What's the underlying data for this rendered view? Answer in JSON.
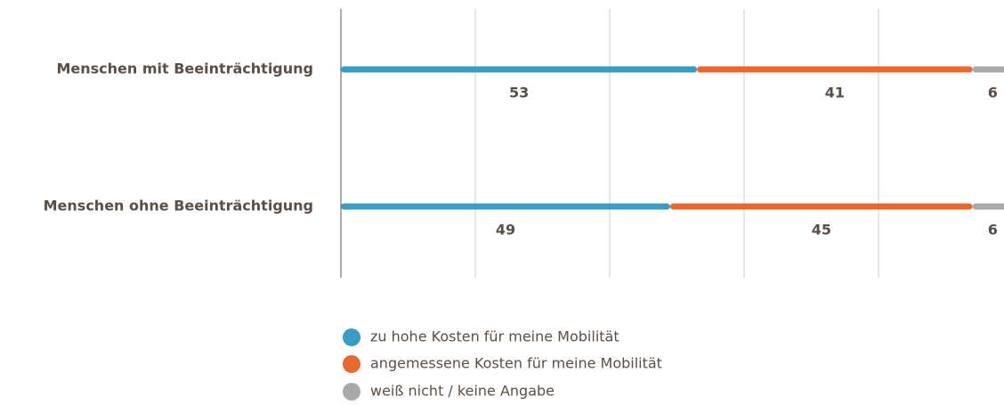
{
  "chart_data": {
    "type": "stacked-hbar",
    "categories": [
      "Menschen mit Beeinträchtigung",
      "Menschen ohne Beeinträchtigung"
    ],
    "series": [
      {
        "name": "zu hohe Kosten für meine Mobilität",
        "color": "#3a9cc2",
        "values": [
          53,
          49
        ]
      },
      {
        "name": "angemessene Kosten für meine Mobilität",
        "color": "#e8692f",
        "values": [
          41,
          45
        ]
      },
      {
        "name": "weiß nicht / keine Angabe",
        "color": "#a9a9a9",
        "values": [
          6,
          6
        ]
      }
    ],
    "xlim": [
      0,
      100
    ],
    "xticks": [
      0,
      20,
      40,
      60,
      80
    ],
    "grid": true,
    "legend": "bottom"
  }
}
